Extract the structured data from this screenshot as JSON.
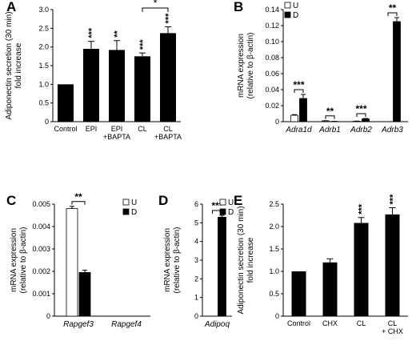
{
  "chart_data": [
    {
      "panel_label": "A",
      "type": "bar",
      "ylabel": "Adiponectin secretion (30 min)\nfold increase",
      "ylim": [
        0,
        3.0
      ],
      "yticks": [
        "0",
        "0.5",
        "1.0",
        "1.5",
        "2.0",
        "2.5",
        "3.0"
      ],
      "categories": [
        "Control",
        "EPI",
        "EPI\n+BAPTA",
        "CL",
        "CL\n+BAPTA"
      ],
      "values": [
        1.0,
        1.95,
        1.92,
        1.75,
        2.37
      ],
      "errors": [
        0,
        0.2,
        0.25,
        0.09,
        0.17
      ],
      "significance": [
        "",
        "***",
        "**",
        "***",
        "***"
      ],
      "brackets": [
        {
          "from": 3,
          "to": 4,
          "label": "*"
        }
      ],
      "legend": []
    },
    {
      "panel_label": "B",
      "type": "bar",
      "ylabel": "mRNA expression\n(relative to β-actin)",
      "ylim": [
        0,
        0.14
      ],
      "yticks": [
        "0",
        "0.02",
        "0.04",
        "0.06",
        "0.08",
        "0.10",
        "0.12",
        "0.14"
      ],
      "categories": [
        "Adra1d",
        "Adrb1",
        "Adrb2",
        "Adrb3"
      ],
      "series": [
        {
          "name": "U",
          "values": [
            0.008,
            0.001,
            0.0005,
            0.0
          ],
          "errors": [
            0.0008,
            0.0002,
            0.0002,
            0
          ]
        },
        {
          "name": "D",
          "values": [
            0.029,
            0.0003,
            0.0035,
            0.125
          ],
          "errors": [
            0.005,
            0.0001,
            0.0005,
            0.005
          ]
        }
      ],
      "brackets": [
        {
          "group": 0,
          "label": "***"
        },
        {
          "group": 1,
          "label": "**"
        },
        {
          "group": 2,
          "label": "***"
        },
        {
          "group": 3,
          "label": "**"
        }
      ],
      "legend": [
        "U",
        "D"
      ]
    },
    {
      "panel_label": "C",
      "type": "bar",
      "ylabel": "mRNA expression\n(relative to β-actin)",
      "ylim": [
        0,
        0.005
      ],
      "yticks": [
        "0",
        "0.001",
        "0.002",
        "0.003",
        "0.004",
        "0.005"
      ],
      "categories": [
        "Rapgef3",
        "Rapgef4"
      ],
      "series": [
        {
          "name": "U",
          "values": [
            0.0048,
            0.0
          ],
          "errors": [
            0.0001,
            0
          ]
        },
        {
          "name": "D",
          "values": [
            0.00195,
            0.0
          ],
          "errors": [
            0.0001,
            0
          ]
        }
      ],
      "brackets": [
        {
          "group": 0,
          "label": "**"
        }
      ],
      "legend": [
        "U",
        "D"
      ]
    },
    {
      "panel_label": "D",
      "type": "bar",
      "ylabel": "mRNA expression\n(relative to β-actin)",
      "ylim": [
        0,
        6
      ],
      "yticks": [
        "0",
        "1",
        "2",
        "3",
        "4",
        "5",
        "6"
      ],
      "categories": [
        "Adipoq"
      ],
      "series": [
        {
          "name": "U",
          "values": [
            0.0
          ],
          "errors": [
            0
          ]
        },
        {
          "name": "D",
          "values": [
            5.3
          ],
          "errors": [
            0.1
          ]
        }
      ],
      "brackets": [
        {
          "group": 0,
          "label": "***"
        }
      ],
      "legend": [
        "U",
        "D"
      ]
    },
    {
      "panel_label": "E",
      "type": "bar",
      "ylabel": "Adiponectin secretion (30 min)\nfold increase",
      "ylim": [
        0,
        2.5
      ],
      "yticks": [
        "0",
        "0.5",
        "1.0",
        "1.5",
        "2.0",
        "2.5"
      ],
      "categories": [
        "Control",
        "CHX",
        "CL",
        "CL\n+ CHX"
      ],
      "values": [
        1.0,
        1.2,
        2.08,
        2.27
      ],
      "errors": [
        0,
        0.08,
        0.12,
        0.15
      ],
      "significance": [
        "",
        "",
        "***",
        "***"
      ],
      "brackets": [],
      "legend": []
    }
  ]
}
